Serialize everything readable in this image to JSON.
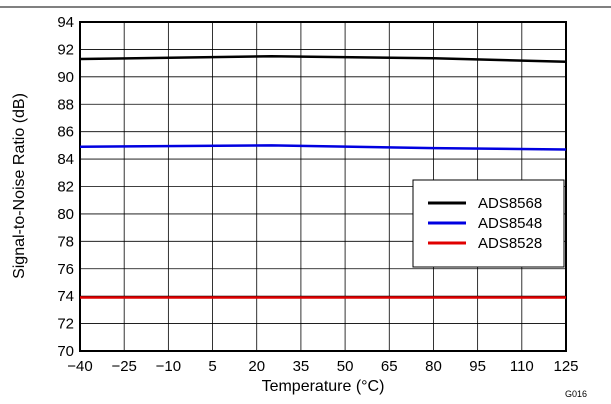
{
  "chart_data": {
    "type": "line",
    "title": "",
    "xlabel": "Temperature (°C)",
    "ylabel": "Signal-to-Noise Ratio (dB)",
    "x": [
      -40,
      -25,
      -10,
      5,
      20,
      35,
      50,
      65,
      80,
      95,
      110,
      125
    ],
    "x_tick_labels": [
      "−40",
      "−25",
      "−10",
      "5",
      "20",
      "35",
      "50",
      "65",
      "80",
      "95",
      "110",
      "125"
    ],
    "y_ticks": [
      70,
      72,
      74,
      76,
      78,
      80,
      82,
      84,
      86,
      88,
      90,
      92,
      94
    ],
    "xlim": [
      -40,
      125
    ],
    "ylim": [
      70,
      94
    ],
    "grid": true,
    "legend_position": "right",
    "series": [
      {
        "name": "ADS8568",
        "color": "#000000",
        "points": [
          [
            -40,
            91.3
          ],
          [
            25,
            91.5
          ],
          [
            80,
            91.35
          ],
          [
            125,
            91.1
          ]
        ]
      },
      {
        "name": "ADS8548",
        "color": "#0000e0",
        "points": [
          [
            -40,
            84.9
          ],
          [
            25,
            85.0
          ],
          [
            80,
            84.8
          ],
          [
            125,
            84.7
          ]
        ]
      },
      {
        "name": "ADS8528",
        "color": "#e00000",
        "points": [
          [
            -40,
            73.9
          ],
          [
            25,
            73.9
          ],
          [
            80,
            73.9
          ],
          [
            125,
            73.9
          ]
        ]
      }
    ],
    "annotation": "G016"
  }
}
